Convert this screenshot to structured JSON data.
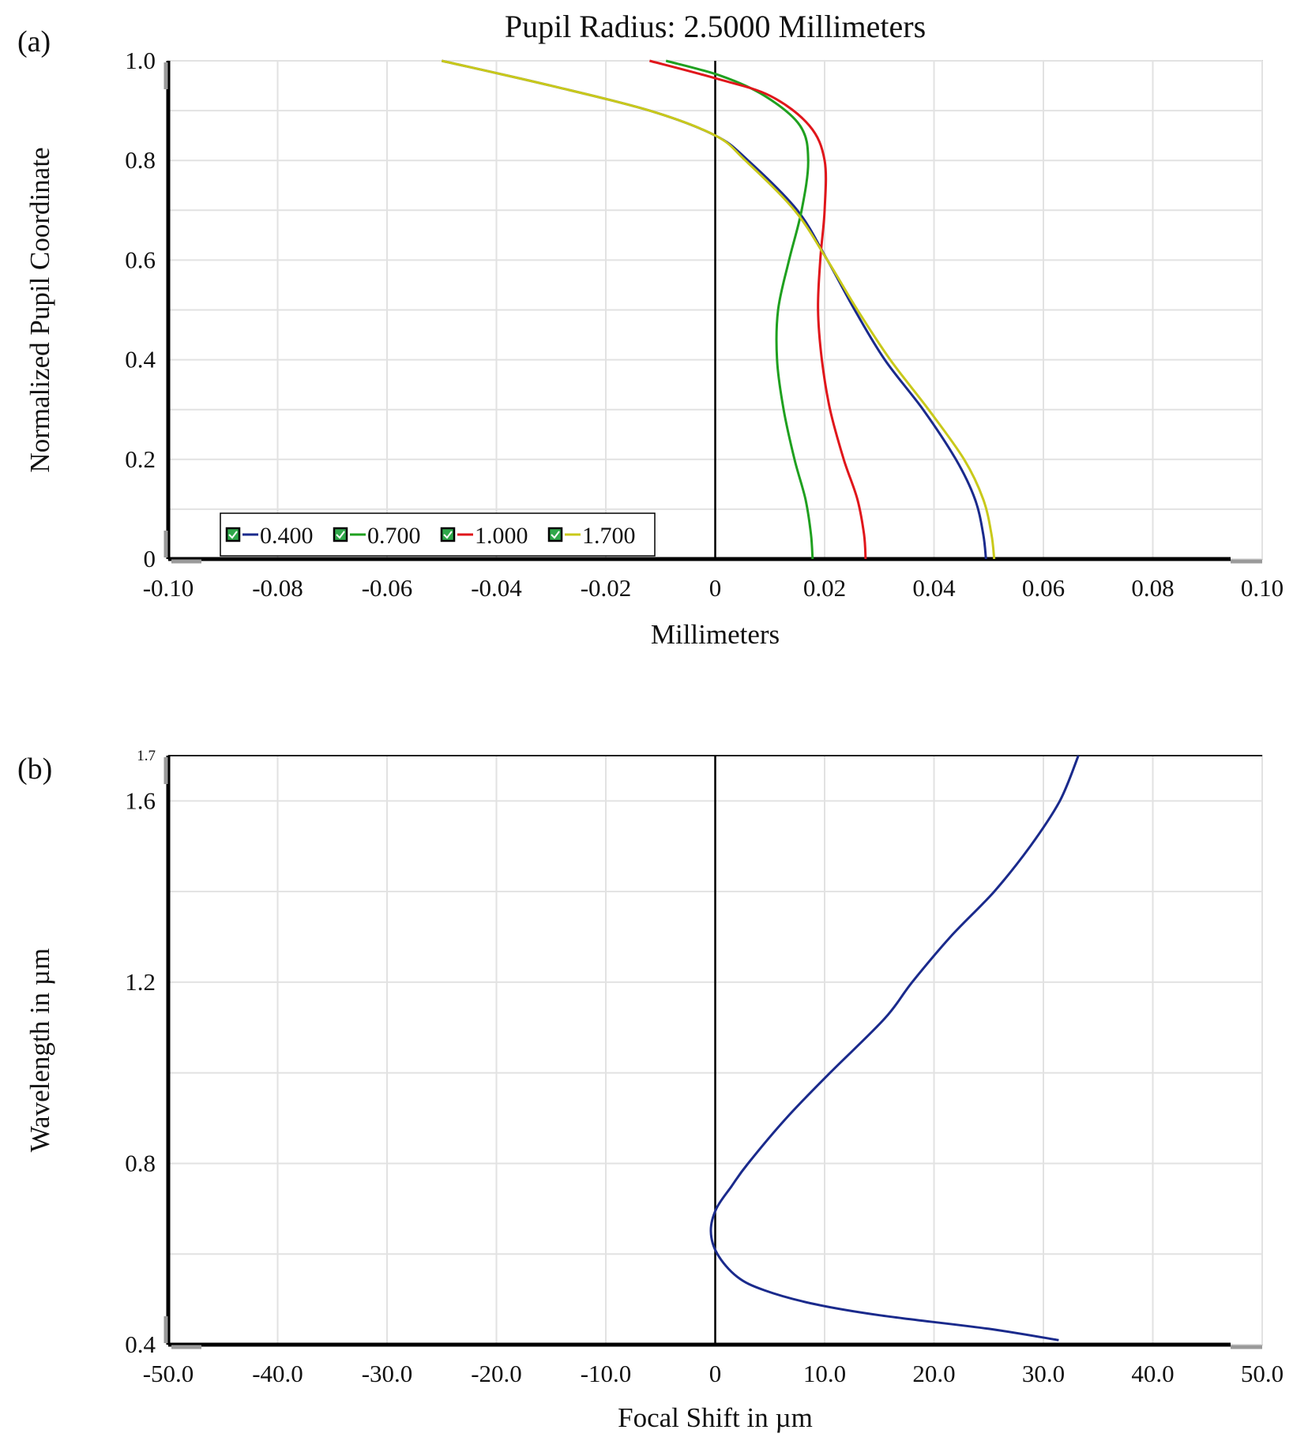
{
  "panels": {
    "a": {
      "letter": "(a)"
    },
    "b": {
      "letter": "(b)"
    }
  },
  "chart_data": [
    {
      "id": "a",
      "type": "line",
      "title": "Pupil Radius: 2.5000 Millimeters",
      "xlabel": "Millimeters",
      "ylabel": "Normalized Pupil Coordinate",
      "xlim": [
        -0.1,
        0.1
      ],
      "ylim": [
        0,
        1.0
      ],
      "x_ticks": [
        "-0.10",
        "-0.08",
        "-0.06",
        "-0.04",
        "-0.02",
        "0",
        "0.02",
        "0.04",
        "0.06",
        "0.08",
        "0.10"
      ],
      "y_ticks": [
        "0",
        "0.2",
        "0.4",
        "0.6",
        "0.8",
        "1.0"
      ],
      "grid": true,
      "legend": {
        "placement": "bottom-left",
        "orientation": "horizontal"
      },
      "series": [
        {
          "name": "0.400",
          "color": "#1a2a8c",
          "points": [
            [
              0.0495,
              0
            ],
            [
              0.049,
              0.05
            ],
            [
              0.0475,
              0.12
            ],
            [
              0.044,
              0.2
            ],
            [
              0.038,
              0.3
            ],
            [
              0.031,
              0.4
            ],
            [
              0.0255,
              0.5
            ],
            [
              0.0205,
              0.6
            ],
            [
              0.015,
              0.7
            ],
            [
              0.006,
              0.8
            ],
            [
              0.0,
              0.85
            ],
            [
              -0.012,
              0.9
            ],
            [
              -0.03,
              0.95
            ],
            [
              -0.05,
              1.0
            ]
          ]
        },
        {
          "name": "0.700",
          "color": "#1fa01f",
          "points": [
            [
              0.0178,
              0
            ],
            [
              0.0175,
              0.05
            ],
            [
              0.0165,
              0.12
            ],
            [
              0.0145,
              0.2
            ],
            [
              0.0125,
              0.3
            ],
            [
              0.0113,
              0.4
            ],
            [
              0.0115,
              0.5
            ],
            [
              0.0135,
              0.6
            ],
            [
              0.0158,
              0.7
            ],
            [
              0.017,
              0.8
            ],
            [
              0.0155,
              0.87
            ],
            [
              0.009,
              0.93
            ],
            [
              0.001,
              0.97
            ],
            [
              -0.009,
              1.0
            ]
          ]
        },
        {
          "name": "1.000",
          "color": "#e0161b",
          "points": [
            [
              0.0275,
              0
            ],
            [
              0.0272,
              0.05
            ],
            [
              0.026,
              0.12
            ],
            [
              0.0235,
              0.2
            ],
            [
              0.021,
              0.3
            ],
            [
              0.0195,
              0.4
            ],
            [
              0.0188,
              0.5
            ],
            [
              0.0192,
              0.6
            ],
            [
              0.02,
              0.7
            ],
            [
              0.02,
              0.8
            ],
            [
              0.0172,
              0.87
            ],
            [
              0.01,
              0.93
            ],
            [
              0.0,
              0.965
            ],
            [
              -0.012,
              1.0
            ]
          ]
        },
        {
          "name": "1.700",
          "color": "#c9c91a",
          "points": [
            [
              0.051,
              0
            ],
            [
              0.0505,
              0.05
            ],
            [
              0.049,
              0.12
            ],
            [
              0.0455,
              0.2
            ],
            [
              0.039,
              0.3
            ],
            [
              0.032,
              0.4
            ],
            [
              0.026,
              0.5
            ],
            [
              0.0205,
              0.6
            ],
            [
              0.0145,
              0.7
            ],
            [
              0.0055,
              0.8
            ],
            [
              0.0,
              0.85
            ],
            [
              -0.012,
              0.9
            ],
            [
              -0.03,
              0.95
            ],
            [
              -0.05,
              1.0
            ]
          ]
        }
      ]
    },
    {
      "id": "b",
      "type": "line",
      "title": "",
      "xlabel": "Focal Shift in µm",
      "ylabel": "Wavelength in µm",
      "xlim": [
        -50,
        50
      ],
      "ylim": [
        0.4,
        1.7
      ],
      "x_ticks": [
        "-50.0",
        "-40.0",
        "-30.0",
        "-20.0",
        "-10.0",
        "0",
        "10.0",
        "20.0",
        "30.0",
        "40.0",
        "50.0"
      ],
      "y_ticks": [
        "0.4",
        "0.8",
        "1.2",
        "1.6",
        "1.7"
      ],
      "grid": true,
      "series": [
        {
          "name": "",
          "color": "#1a2a8c",
          "points": [
            [
              31.4,
              0.41
            ],
            [
              25,
              0.435
            ],
            [
              15,
              0.465
            ],
            [
              9,
              0.49
            ],
            [
              4.5,
              0.52
            ],
            [
              2.0,
              0.55
            ],
            [
              0.2,
              0.6
            ],
            [
              -0.4,
              0.65
            ],
            [
              0.1,
              0.7
            ],
            [
              1.5,
              0.75
            ],
            [
              3.0,
              0.8
            ],
            [
              6.5,
              0.9
            ],
            [
              10.5,
              1.0
            ],
            [
              15.5,
              1.12
            ],
            [
              18.0,
              1.2
            ],
            [
              21.5,
              1.3
            ],
            [
              25.5,
              1.4
            ],
            [
              28.8,
              1.5
            ],
            [
              31.5,
              1.6
            ],
            [
              33.2,
              1.7
            ]
          ]
        }
      ]
    }
  ]
}
